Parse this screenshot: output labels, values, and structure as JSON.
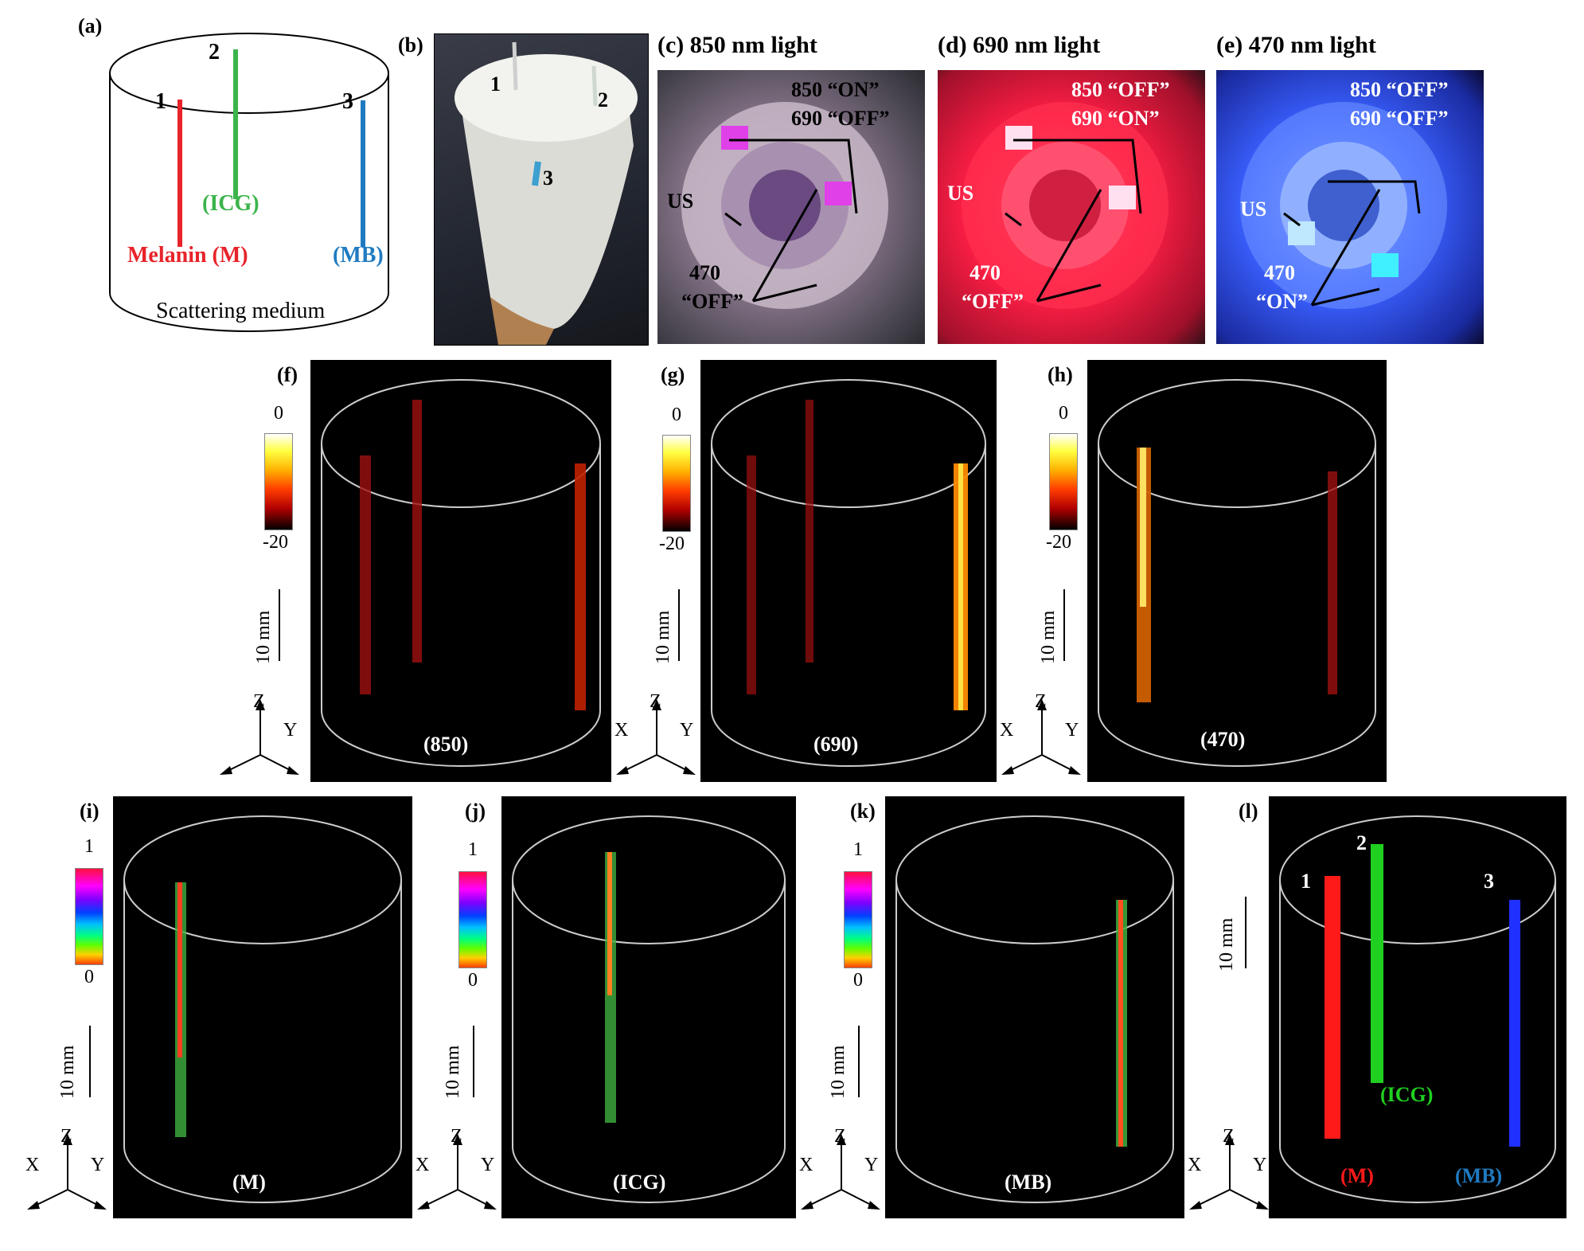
{
  "panel_a": {
    "label": "(a)",
    "tube_numbers": [
      "1",
      "2",
      "3"
    ],
    "melanin_label": "Melanin (M)",
    "icg_label": "(ICG)",
    "mb_label": "(MB)",
    "medium_label": "Scattering medium",
    "colors": {
      "melanin": "#e8232a",
      "icg": "#3cb44b",
      "mb": "#1f7bc1"
    }
  },
  "panel_b": {
    "label": "(b)",
    "numbers": [
      "1",
      "2",
      "3"
    ]
  },
  "panel_c": {
    "label": "(c)",
    "title": "850 nm light",
    "t850": "850 “ON”",
    "t690": "690 “OFF”",
    "us": "US",
    "t470a": "470",
    "t470b": "“OFF”"
  },
  "panel_d": {
    "label": "(d)",
    "title": "690 nm light",
    "t850": "850 “OFF”",
    "t690": "690 “ON”",
    "us": "US",
    "t470a": "470",
    "t470b": "“OFF”"
  },
  "panel_e": {
    "label": "(e)",
    "title": "470 nm light",
    "t850": "850 “OFF”",
    "t690": "690 “OFF”",
    "us": "US",
    "t470a": "470",
    "t470b": "“ON”"
  },
  "colorbar_db": {
    "top": "0",
    "bottom": "-20"
  },
  "colorbar_norm": {
    "top": "1",
    "bottom": "0"
  },
  "scale_label": "10 mm",
  "axes": {
    "z": "Z",
    "x": "X",
    "y": "Y"
  },
  "panel_f": {
    "label": "(f)",
    "caption": "(850)"
  },
  "panel_g": {
    "label": "(g)",
    "caption": "(690)"
  },
  "panel_h": {
    "label": "(h)",
    "caption": "(470)"
  },
  "panel_i": {
    "label": "(i)",
    "caption": "(M)"
  },
  "panel_j": {
    "label": "(j)",
    "caption": "(ICG)"
  },
  "panel_k": {
    "label": "(k)",
    "caption": "(MB)"
  },
  "panel_l": {
    "label": "(l)",
    "n1": "1",
    "n2": "2",
    "n3": "3",
    "icg": "(ICG)",
    "m": "(M)",
    "mb": "(MB)"
  }
}
